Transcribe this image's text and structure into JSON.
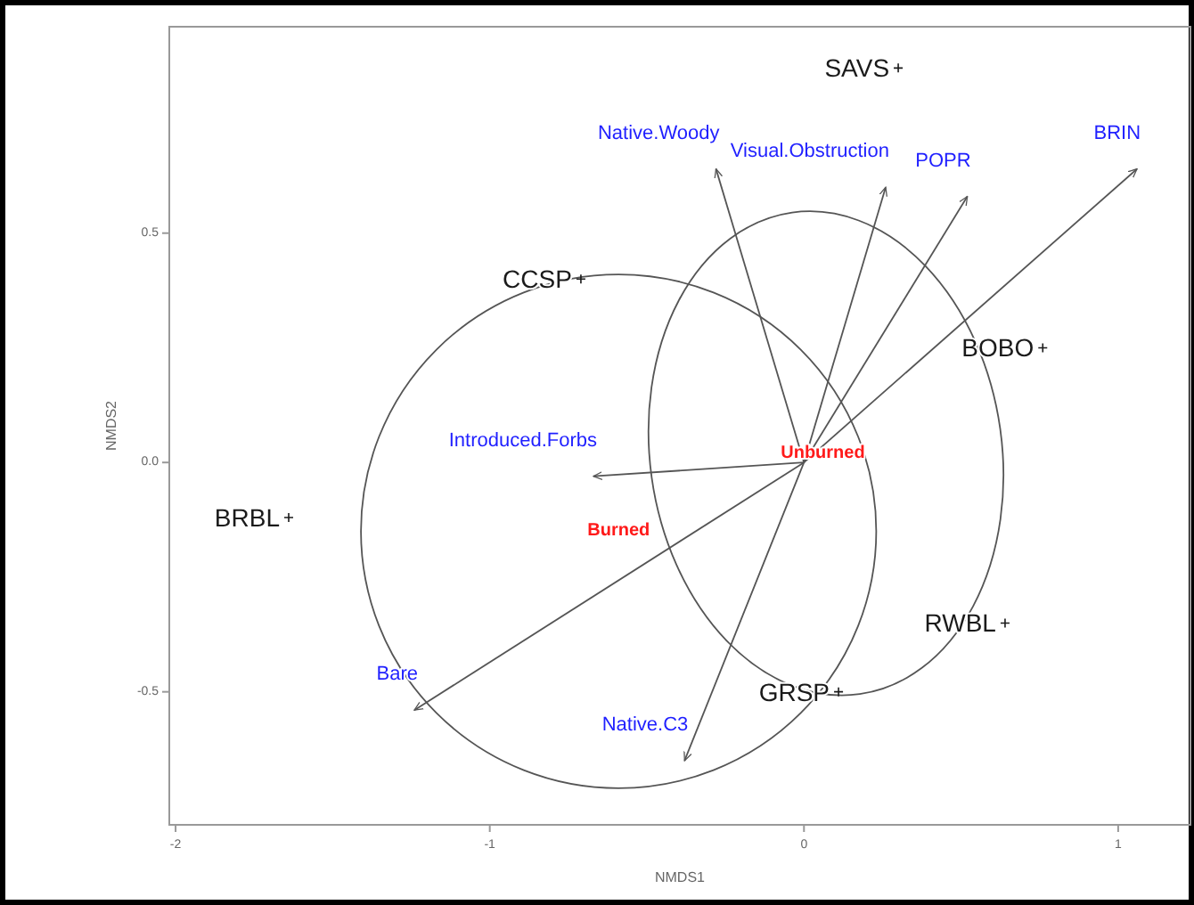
{
  "chart_data": {
    "type": "scatter",
    "xlabel": "NMDS1",
    "ylabel": "NMDS2",
    "xlim": [
      -2.02,
      1.23
    ],
    "ylim": [
      -0.79,
      0.95
    ],
    "xticks": [
      -2,
      -1,
      0,
      1
    ],
    "yticks": [
      {
        "value": -0.5,
        "label": "-0.5"
      },
      {
        "value": 0,
        "label": "0.0"
      },
      {
        "value": 0.5,
        "label": "0.5"
      }
    ],
    "grid": false,
    "annotations": [
      {
        "text": "Unburned",
        "x": 0.06,
        "y": 0.02
      },
      "Burned"
    ],
    "series": [
      {
        "type": "line",
        "color": "#555555",
        "x": [
          0,
          -0.28
        ],
        "values": [
          0,
          0.64
        ],
        "value_labels": [
          null,
          "Native.Woody"
        ]
      },
      {
        "type": "line",
        "color": "#555555",
        "x": [
          0,
          0.26
        ],
        "values": [
          0,
          0.6
        ],
        "value_labels": [
          null,
          "Visual.Obstruction"
        ]
      },
      {
        "type": "line",
        "color": "#555555",
        "x": [
          0,
          0.52
        ],
        "values": [
          0,
          0.58
        ],
        "value_labels": [
          null,
          "POPR"
        ]
      },
      {
        "type": "line",
        "color": "#555555",
        "x": [
          0,
          1.06
        ],
        "values": [
          0,
          0.64
        ],
        "value_labels": [
          null,
          "BRIN"
        ]
      },
      {
        "type": "line",
        "color": "#555555",
        "x": [
          0,
          -0.67
        ],
        "values": [
          0,
          -0.03
        ],
        "value_labels": [
          null,
          "Introduced.Forbs"
        ]
      },
      {
        "type": "line",
        "color": "#555555",
        "x": [
          0,
          -1.24
        ],
        "values": [
          0,
          -0.54
        ],
        "value_labels": [
          null,
          "Bare"
        ]
      },
      {
        "type": "line",
        "color": "#555555",
        "x": [
          0,
          -0.38
        ],
        "values": [
          0,
          -0.65
        ],
        "value_labels": [
          null,
          "Native.C3"
        ]
      },
      {
        "color": "#1a1a1a",
        "marker": "cross",
        "x": [
          0.3,
          -0.71,
          0.76,
          -1.64,
          0.64,
          0.11
        ],
        "values": [
          0.86,
          0.4,
          0.25,
          -0.12,
          -0.35,
          -0.5
        ],
        "value_labels": [
          "SAVS",
          "CCSP",
          "BOBO",
          "BRBL",
          "RWBL",
          "GRSP"
        ]
      }
    ]
  }
}
